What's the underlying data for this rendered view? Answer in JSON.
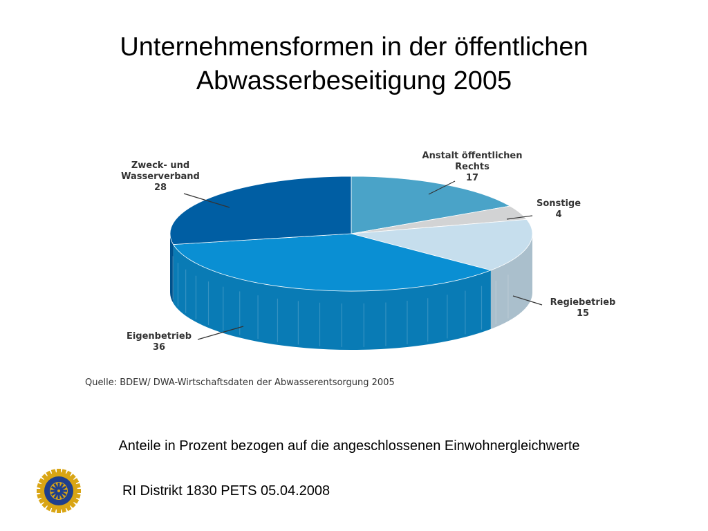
{
  "title": {
    "line1": "Unternehmensformen in der öffentlichen",
    "line2": "Abwasserbeseitigung 2005"
  },
  "chart_data": {
    "type": "pie",
    "title": "",
    "slices": [
      {
        "label_lines": [
          "Anstalt öffentlichen",
          "Rechts"
        ],
        "value": 17,
        "color": "#4aa3c8"
      },
      {
        "label_lines": [
          "Sonstige"
        ],
        "value": 4,
        "color": "#d2d3d4"
      },
      {
        "label_lines": [
          "Regiebetrieb"
        ],
        "value": 15,
        "color": "#c6deed"
      },
      {
        "label_lines": [
          "Eigenbetrieb"
        ],
        "value": 36,
        "color": "#0a8fd3"
      },
      {
        "label_lines": [
          "Zweck- und",
          "Wasserverband"
        ],
        "value": 28,
        "color": "#005ea3"
      }
    ],
    "source": "Quelle: BDEW/ DWA-Wirtschaftsdaten der Abwasserentsorgung 2005"
  },
  "note": "Anteile in Prozent bezogen auf die angeschlossenen Einwohnergleichwerte",
  "footer": "RI Distrikt 1830 PETS 05.04.2008",
  "logo": {
    "ring_text_top": "ROTARY",
    "ring_text_bottom": "INTERNATIONAL",
    "color_gold": "#d9a514",
    "color_blue": "#1f3f8c"
  }
}
